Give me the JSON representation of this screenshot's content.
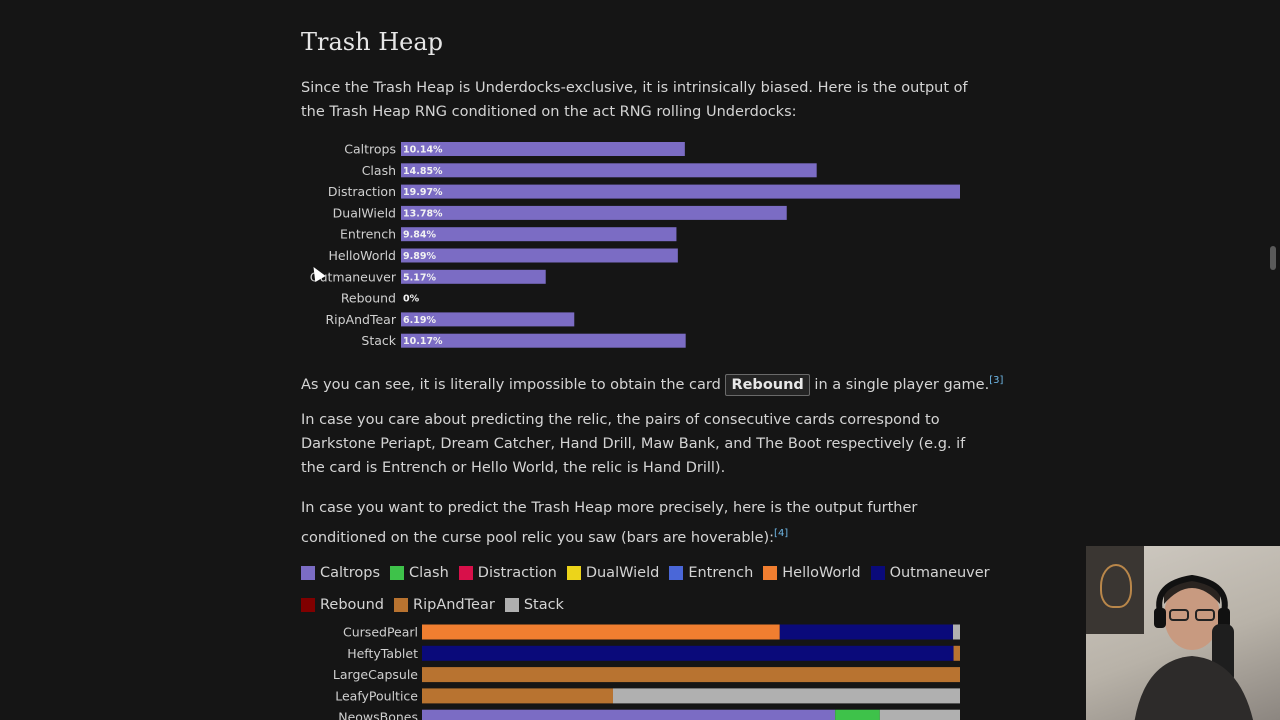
{
  "heading": "Trash Heap",
  "intro": "Since the Trash Heap is Underdocks-exclusive, it is intrinsically biased. Here is the output of the Trash Heap RNG conditioned on the act RNG rolling Underdocks:",
  "impossible": {
    "before": "As you can see, it is literally impossible to obtain the card ",
    "card": "Rebound",
    "after": " in a single player game.",
    "ref": "[3]"
  },
  "relic_para": "In case you care about predicting the relic, the pairs of consecutive cards correspond to Darkstone Periapt, Dream Catcher, Hand Drill, Maw Bank, and The Boot respectively (e.g. if the card is Entrench or Hello World, the relic is Hand Drill).",
  "predict_para": {
    "text": "In case you want to predict the Trash Heap more precisely, here is the output further conditioned on the curse pool relic you saw (bars are hoverable):",
    "ref": "[4]"
  },
  "colors": {
    "bar": "#7b6cc4",
    "Caltrops": "#7b6cc4",
    "Clash": "#3ec24a",
    "Distraction": "#d8104a",
    "DualWield": "#ecd41a",
    "Entrench": "#4a67d8",
    "HelloWorld": "#f07e30",
    "Outmaneuver": "#0a0a7a",
    "Rebound": "#800000",
    "RipAndTear": "#b87330",
    "Stack": "#b0b0b0"
  },
  "chart_data": [
    {
      "type": "bar",
      "orientation": "horizontal",
      "categories": [
        "Caltrops",
        "Clash",
        "Distraction",
        "DualWield",
        "Entrench",
        "HelloWorld",
        "Outmaneuver",
        "Rebound",
        "RipAndTear",
        "Stack"
      ],
      "values": [
        10.14,
        14.85,
        19.97,
        13.78,
        9.84,
        9.89,
        5.17,
        0,
        6.19,
        10.17
      ],
      "value_labels": [
        "10.14%",
        "14.85%",
        "19.97%",
        "13.78%",
        "9.84%",
        "9.89%",
        "5.17%",
        "0%",
        "6.19%",
        "10.17%"
      ]
    },
    {
      "type": "bar",
      "orientation": "horizontal",
      "stacked": true,
      "legend": [
        "Caltrops",
        "Clash",
        "Distraction",
        "DualWield",
        "Entrench",
        "HelloWorld",
        "Outmaneuver",
        "Rebound",
        "RipAndTear",
        "Stack"
      ],
      "legend_position": "top",
      "categories": [
        "CursedPearl",
        "HeftyTablet",
        "LargeCapsule",
        "LeafyPoultice",
        "NeowsBones"
      ],
      "rows": [
        {
          "HelloWorld": 66.5,
          "Outmaneuver": 32.2,
          "Stack": 1.3
        },
        {
          "Outmaneuver": 98.8,
          "RipAndTear": 1.2
        },
        {
          "RipAndTear": 100
        },
        {
          "RipAndTear": 35.5,
          "Stack": 64.5
        },
        {
          "Caltrops": 76.8,
          "Clash": 8.3,
          "Stack": 14.9
        }
      ]
    }
  ]
}
